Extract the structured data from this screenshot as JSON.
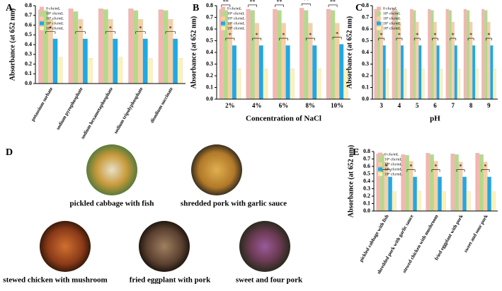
{
  "chart_data": [
    {
      "type": "bar",
      "panel_label": "A",
      "y_label": "Absorbance (at 652 nm)",
      "categories": [
        "potassium sorbate",
        "sodium pyrophosphate",
        "sodium hexametaphosphate",
        "sodium tripolyphosphate",
        "disodium succinate"
      ],
      "series": [
        {
          "name": "0 cfu/mL",
          "color": "#f4b6b0",
          "values": [
            0.76,
            0.77,
            0.77,
            0.77,
            0.76
          ]
        },
        {
          "name": "10² cfu/mL",
          "color": "#b5d98a",
          "values": [
            0.75,
            0.74,
            0.76,
            0.75,
            0.75
          ]
        },
        {
          "name": "10⁴ cfu/mL",
          "color": "#f7cfa5",
          "values": [
            0.66,
            0.66,
            0.66,
            0.66,
            0.66
          ]
        },
        {
          "name": "10⁶ cfu/mL",
          "color": "#1ea9e6",
          "values": [
            0.46,
            0.46,
            0.46,
            0.46,
            0.46
          ]
        },
        {
          "name": "10⁸ cfu/mL",
          "color": "#fff2b8",
          "values": [
            0.27,
            0.26,
            0.27,
            0.26,
            0.26
          ]
        }
      ],
      "significance": [
        [
          "*"
        ],
        [
          "*"
        ],
        [
          "*"
        ],
        [
          "*"
        ],
        [
          "*"
        ]
      ],
      "ylim": [
        0,
        0.8
      ],
      "yticks": [
        {
          "value": 0,
          "label": "0.0"
        },
        0.1,
        0.2,
        0.3,
        0.4,
        0.5,
        0.6,
        0.7,
        0.8
      ]
    },
    {
      "type": "bar",
      "panel_label": "B",
      "y_label": "Absorbance (at 652 nm)",
      "x_label": "Concentration of NaCl",
      "categories": [
        "2%",
        "4%",
        "6%",
        "8%",
        "10%"
      ],
      "series": [
        {
          "name": "0 cfu/mL",
          "color": "#f4b6b0",
          "values": [
            0.77,
            0.77,
            0.77,
            0.78,
            0.77
          ]
        },
        {
          "name": "10² cfu/mL",
          "color": "#b5d98a",
          "values": [
            0.76,
            0.76,
            0.76,
            0.76,
            0.76
          ]
        },
        {
          "name": "10⁴ cfu/mL",
          "color": "#f7cfa5",
          "values": [
            0.65,
            0.65,
            0.65,
            0.65,
            0.65
          ]
        },
        {
          "name": "10⁶ cfu/mL",
          "color": "#1ea9e6",
          "values": [
            0.46,
            0.46,
            0.46,
            0.46,
            0.47
          ]
        },
        {
          "name": "10⁸ cfu/mL",
          "color": "#fff2b8",
          "values": [
            0.26,
            0.26,
            0.26,
            0.26,
            0.26
          ]
        }
      ],
      "significance": [
        [
          "**",
          "*"
        ],
        [
          "**",
          "*"
        ],
        [
          "**",
          "*"
        ],
        [
          "**",
          "*"
        ],
        [
          "**",
          "*"
        ]
      ],
      "ylim": [
        0,
        0.8
      ],
      "yticks": [
        {
          "value": 0,
          "label": "0.0"
        },
        0.1,
        0.2,
        0.3,
        0.4,
        0.5,
        0.6,
        0.7,
        0.8
      ]
    },
    {
      "type": "bar",
      "panel_label": "C",
      "y_label": "Absorbance (at 652 nm)",
      "x_label": "pH",
      "categories": [
        "3",
        "4",
        "5",
        "6",
        "7",
        "8",
        "9"
      ],
      "series": [
        {
          "name": "0 cfu/mL",
          "color": "#f4b6b0",
          "values": [
            0.77,
            0.77,
            0.77,
            0.77,
            0.77,
            0.77,
            0.77
          ]
        },
        {
          "name": "10² cfu/mL",
          "color": "#b5d98a",
          "values": [
            0.76,
            0.76,
            0.76,
            0.76,
            0.76,
            0.76,
            0.76
          ]
        },
        {
          "name": "10⁴ cfu/mL",
          "color": "#f7cfa5",
          "values": [
            0.66,
            0.66,
            0.66,
            0.66,
            0.66,
            0.66,
            0.66
          ]
        },
        {
          "name": "10⁶ cfu/mL",
          "color": "#1ea9e6",
          "values": [
            0.46,
            0.46,
            0.46,
            0.46,
            0.46,
            0.46,
            0.46
          ]
        },
        {
          "name": "10⁸ cfu/mL",
          "color": "#fff2b8",
          "values": [
            0.26,
            0.26,
            0.26,
            0.26,
            0.26,
            0.26,
            0.26
          ]
        }
      ],
      "significance": [
        [
          "*"
        ],
        [
          "*"
        ],
        [
          "*"
        ],
        [
          "*"
        ],
        [
          "*"
        ],
        [
          "*"
        ],
        [
          "*"
        ]
      ],
      "ylim": [
        0,
        0.8
      ],
      "yticks": [
        {
          "value": 0,
          "label": "0.0"
        },
        0.1,
        0.2,
        0.3,
        0.4,
        0.5,
        0.6,
        0.7,
        0.8
      ]
    },
    {
      "type": "bar",
      "panel_label": "E",
      "y_label": "Absorbance (at 652 nm)",
      "categories": [
        "pickled cabbage with fish",
        "shredded pork with garlic sauce",
        "stewed chicken with mushroom",
        "fried eggplant with pork",
        "sweet and sour pork"
      ],
      "series": [
        {
          "name": "0 cfu/mL",
          "color": "#f4b6b0",
          "values": [
            0.77,
            0.76,
            0.78,
            0.77,
            0.78
          ]
        },
        {
          "name": "10² cfu/mL",
          "color": "#b5d98a",
          "values": [
            0.77,
            0.75,
            0.76,
            0.76,
            0.76
          ]
        },
        {
          "name": "10⁴ cfu/mL",
          "color": "#f7cfa5",
          "values": [
            0.66,
            0.67,
            0.67,
            0.66,
            0.66
          ]
        },
        {
          "name": "10⁶ cfu/mL",
          "color": "#1ea9e6",
          "values": [
            0.46,
            0.46,
            0.46,
            0.46,
            0.46
          ]
        },
        {
          "name": "10⁸ cfu/mL",
          "color": "#fff2b8",
          "values": [
            0.26,
            0.27,
            0.26,
            0.26,
            0.26
          ]
        }
      ],
      "significance": [
        [
          "*"
        ],
        [
          "*"
        ],
        [
          "*"
        ],
        [
          "*"
        ],
        [
          "*"
        ]
      ],
      "ylim": [
        0,
        0.8
      ],
      "yticks": [
        {
          "value": 0,
          "label": "0.0"
        },
        0.1,
        0.2,
        0.3,
        0.4,
        0.5,
        0.6,
        0.7,
        0.8
      ]
    }
  ],
  "panel_d": {
    "label": "D",
    "dishes": [
      "pickled cabbage with fish",
      "shredded pork with garlic sauce",
      "stewed chicken with mushroom",
      "fried eggplant with pork",
      "sweet and four pork"
    ]
  }
}
